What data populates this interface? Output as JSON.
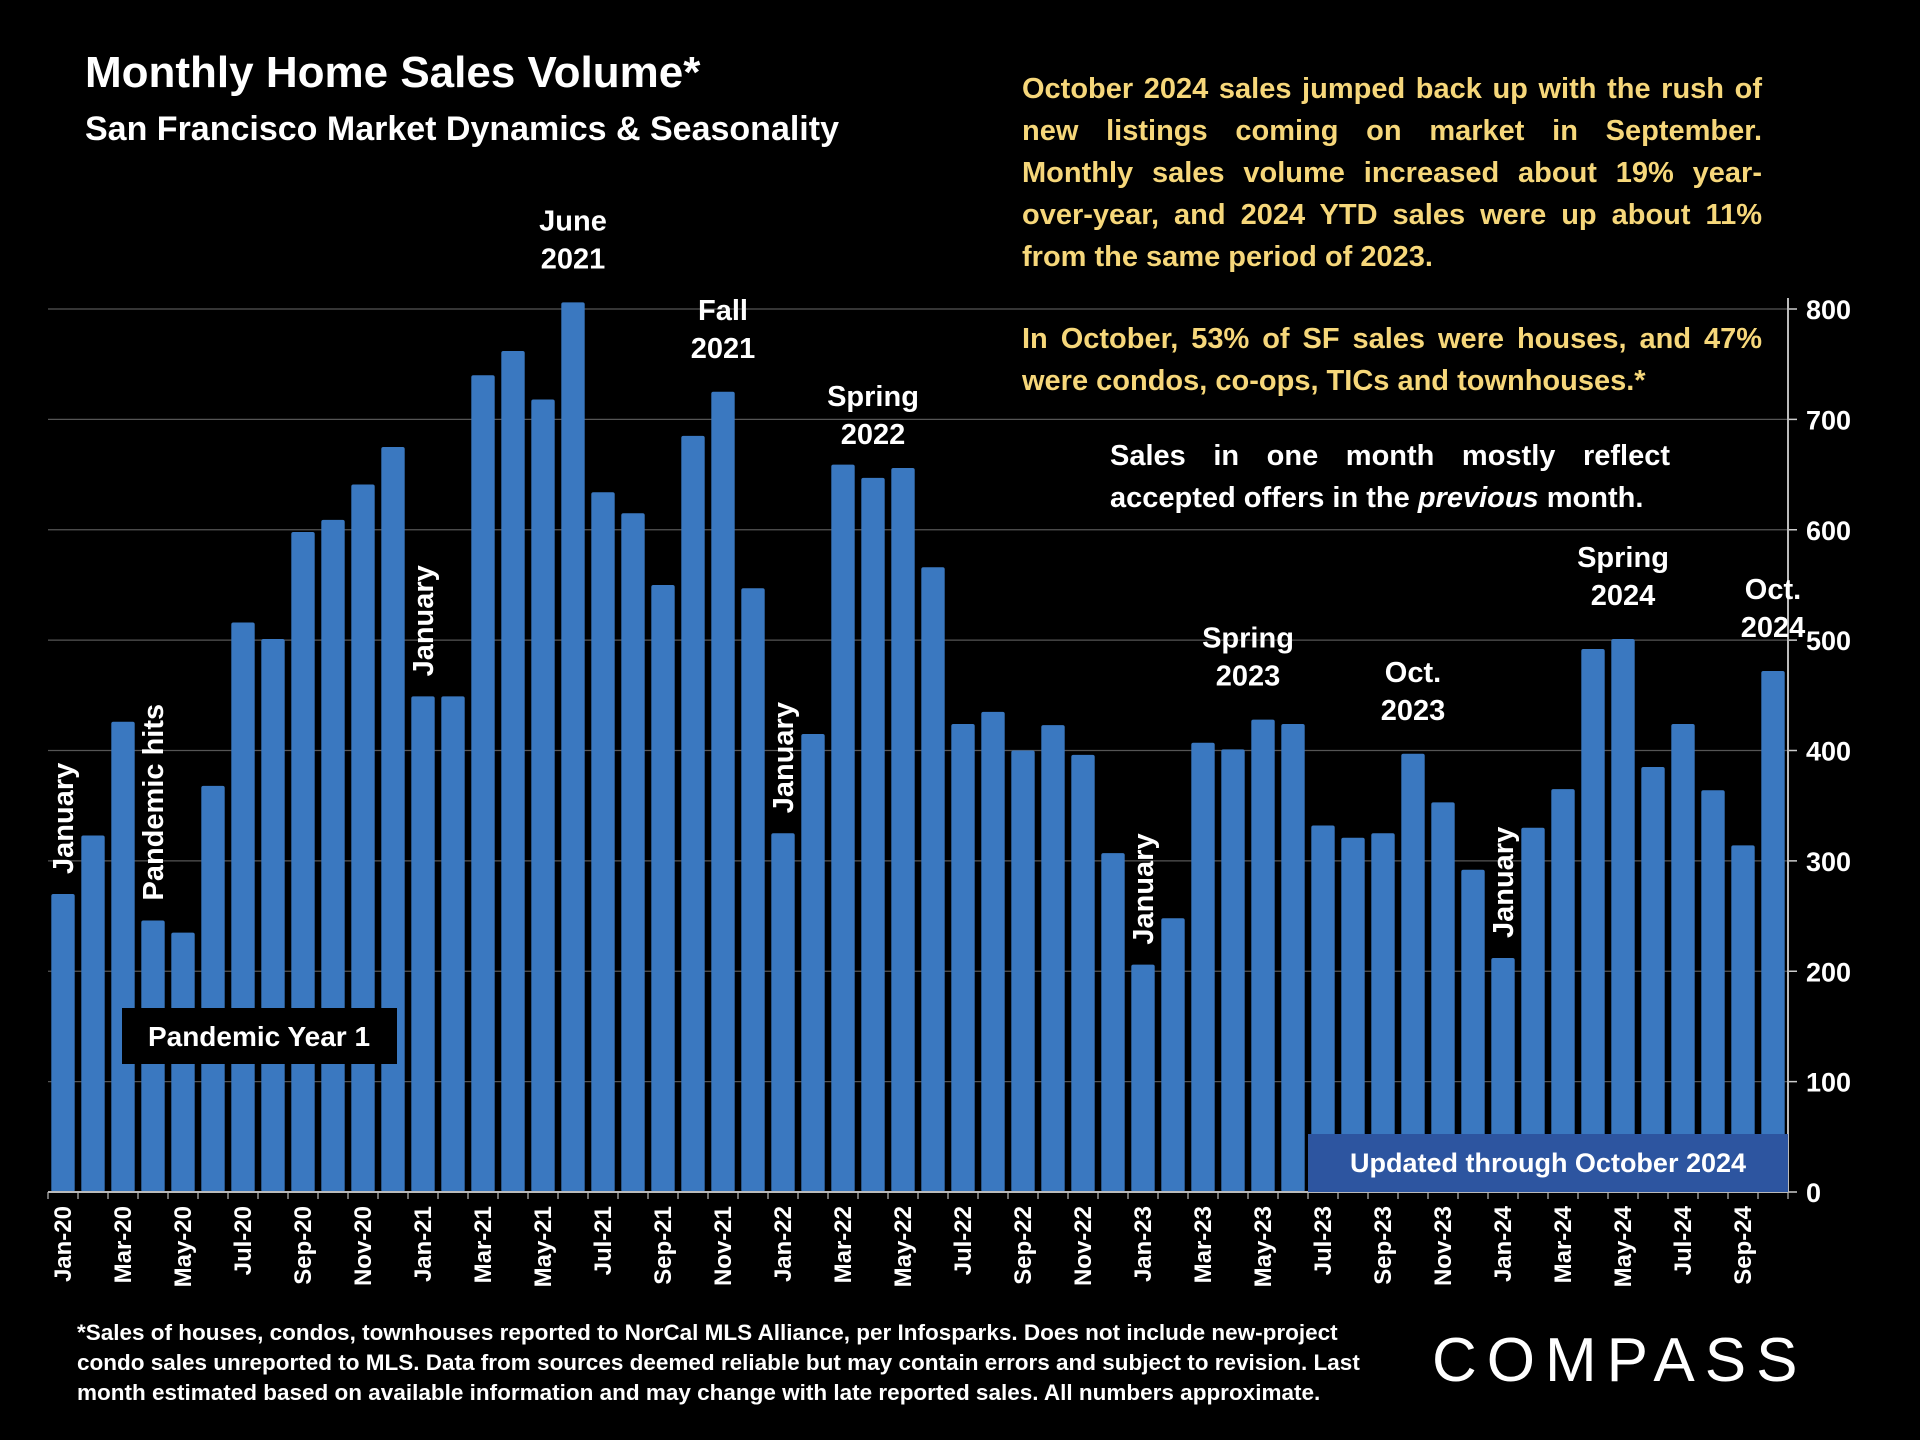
{
  "header": {
    "title": "Monthly Home Sales Volume*",
    "subtitle": "San Francisco Market Dynamics & Seasonality"
  },
  "commentary": {
    "p1": "October 2024 sales jumped back up with the rush of new listings coming on market in September. Monthly sales volume increased about 19% year-over-year, and 2024 YTD sales were up about 11% from the same period of 2023.",
    "p2": "In October, 53% of SF sales were houses, and 47% were condos, co-ops, TICs and townhouses.*"
  },
  "note": {
    "line1": "Sales in one month mostly reflect",
    "line2_before": "accepted offers in the ",
    "line2_emph": "previous",
    "line2_after": " month."
  },
  "footnote": "*Sales of houses, condos, townhouses reported to NorCal MLS Alliance, per Infosparks. Does not include new-project condo sales unreported to MLS. Data from sources deemed reliable but may contain errors and subject to revision. Last month estimated based on available information and may change with late reported sales. All numbers approximate.",
  "logo": "COMPASS",
  "colors": {
    "bar": "#3a78c0",
    "accent_text": "#f6d77a",
    "gridline": "#555555",
    "updated_box": "#2d55a0"
  },
  "chart_data": {
    "type": "bar",
    "title": "Monthly Home Sales Volume*",
    "categories": [
      "Jan-20",
      "Feb-20",
      "Mar-20",
      "Apr-20",
      "May-20",
      "Jun-20",
      "Jul-20",
      "Aug-20",
      "Sep-20",
      "Oct-20",
      "Nov-20",
      "Dec-20",
      "Jan-21",
      "Feb-21",
      "Mar-21",
      "Apr-21",
      "May-21",
      "Jun-21",
      "Jul-21",
      "Aug-21",
      "Sep-21",
      "Oct-21",
      "Nov-21",
      "Dec-21",
      "Jan-22",
      "Feb-22",
      "Mar-22",
      "Apr-22",
      "May-22",
      "Jun-22",
      "Jul-22",
      "Aug-22",
      "Sep-22",
      "Oct-22",
      "Nov-22",
      "Dec-22",
      "Jan-23",
      "Feb-23",
      "Mar-23",
      "Apr-23",
      "May-23",
      "Jun-23",
      "Jul-23",
      "Aug-23",
      "Sep-23",
      "Oct-23",
      "Nov-23",
      "Dec-23",
      "Jan-24",
      "Feb-24",
      "Mar-24",
      "Apr-24",
      "May-24",
      "Jun-24",
      "Jul-24",
      "Aug-24",
      "Sep-24",
      "Oct-24"
    ],
    "values": [
      270,
      323,
      426,
      246,
      235,
      368,
      516,
      501,
      598,
      609,
      641,
      675,
      449,
      449,
      740,
      762,
      718,
      806,
      634,
      615,
      550,
      685,
      725,
      547,
      325,
      415,
      659,
      647,
      656,
      566,
      424,
      435,
      400,
      423,
      396,
      307,
      206,
      248,
      407,
      401,
      428,
      424,
      332,
      321,
      325,
      397,
      353,
      292,
      212,
      330,
      365,
      492,
      501,
      385,
      424,
      364,
      314,
      472
    ],
    "x_tick_labels": [
      "Jan-20",
      "Mar-20",
      "May-20",
      "Jul-20",
      "Sep-20",
      "Nov-20",
      "Jan-21",
      "Mar-21",
      "May-21",
      "Jul-21",
      "Sep-21",
      "Nov-21",
      "Jan-22",
      "Mar-22",
      "May-22",
      "Jul-22",
      "Sep-22",
      "Nov-22",
      "Jan-23",
      "Mar-23",
      "May-23",
      "Jul-23",
      "Sep-23",
      "Nov-23",
      "Jan-24",
      "Mar-24",
      "May-24",
      "Jul-24",
      "Sep-24"
    ],
    "y_ticks": [
      0,
      100,
      200,
      300,
      400,
      500,
      600,
      700,
      800
    ],
    "ylim": [
      0,
      800
    ],
    "y_axis_side": "right",
    "grid": true,
    "annotations_vertical": [
      {
        "text": "January",
        "index": 0
      },
      {
        "text": "Pandemic hits",
        "index": 3
      },
      {
        "text": "January",
        "index": 12
      },
      {
        "text": "January",
        "index": 24
      },
      {
        "text": "January",
        "index": 36
      },
      {
        "text": "January",
        "index": 48
      }
    ],
    "annotations_top": [
      {
        "lines": [
          "June",
          "2021"
        ],
        "index": 17
      },
      {
        "lines": [
          "Fall",
          "2021"
        ],
        "index": 22
      },
      {
        "lines": [
          "Spring",
          "2022"
        ],
        "index": 27
      },
      {
        "lines": [
          "Spring",
          "2023"
        ],
        "index": 39.5
      },
      {
        "lines": [
          "Oct.",
          "2023"
        ],
        "index": 45
      },
      {
        "lines": [
          "Spring",
          "2024"
        ],
        "index": 52
      },
      {
        "lines": [
          "Oct.",
          "2024"
        ],
        "index": 57
      }
    ],
    "boxes": {
      "pandemic_year": "Pandemic Year 1",
      "updated": "Updated through October 2024"
    }
  }
}
